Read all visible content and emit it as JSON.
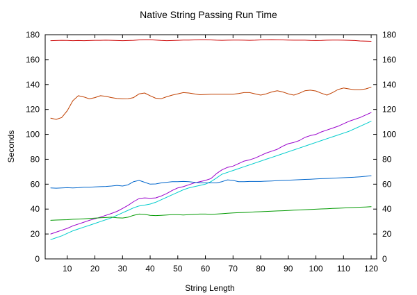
{
  "chart_data": {
    "type": "line",
    "title": "Native String Passing Run Time",
    "xlabel": "String Length",
    "ylabel": "Seconds",
    "xlim": [
      2,
      122
    ],
    "ylim": [
      0,
      180
    ],
    "xticks": [
      10,
      20,
      30,
      40,
      50,
      60,
      70,
      80,
      90,
      100,
      110,
      120
    ],
    "yticks": [
      0,
      20,
      40,
      60,
      80,
      100,
      120,
      140,
      160,
      180
    ],
    "y2ticks": [
      0,
      20,
      40,
      60,
      80,
      100,
      120,
      140,
      160,
      180
    ],
    "grid": false,
    "x": [
      4,
      6,
      8,
      10,
      12,
      14,
      16,
      18,
      20,
      22,
      24,
      26,
      28,
      30,
      32,
      34,
      36,
      38,
      40,
      42,
      44,
      46,
      48,
      50,
      52,
      54,
      56,
      58,
      60,
      62,
      64,
      66,
      68,
      70,
      72,
      74,
      76,
      78,
      80,
      82,
      84,
      86,
      88,
      90,
      92,
      94,
      96,
      98,
      100,
      102,
      104,
      106,
      108,
      110,
      112,
      114,
      116,
      118,
      120
    ],
    "series": [
      {
        "color": "#cc0000",
        "values": [
          175.2,
          175.3,
          175.5,
          175.4,
          175.2,
          175.3,
          175.2,
          175.3,
          175.5,
          175.5,
          175.6,
          175.5,
          175.3,
          175.2,
          175.3,
          175.5,
          175.8,
          176.0,
          176.0,
          175.7,
          175.4,
          175.2,
          175.3,
          175.5,
          175.7,
          175.7,
          175.8,
          176.0,
          176.0,
          175.8,
          175.6,
          175.5,
          175.6,
          175.7,
          175.7,
          175.6,
          175.5,
          175.6,
          175.8,
          175.9,
          176.0,
          175.9,
          175.8,
          175.7,
          175.6,
          175.6,
          175.6,
          175.4,
          175.3,
          175.4,
          175.6,
          175.7,
          175.7,
          175.6,
          175.5,
          175.3,
          175.0,
          174.8,
          174.7
        ]
      },
      {
        "color": "#c04000",
        "values": [
          113.0,
          112.0,
          113.5,
          119.0,
          127.0,
          131.0,
          130.0,
          128.5,
          129.5,
          131.0,
          130.5,
          129.5,
          128.8,
          128.5,
          128.6,
          129.5,
          132.5,
          133.2,
          131.0,
          129.0,
          128.6,
          130.2,
          131.5,
          132.5,
          133.5,
          133.2,
          132.5,
          131.8,
          132.0,
          132.2,
          132.2,
          132.2,
          132.2,
          132.2,
          132.8,
          133.5,
          133.5,
          132.5,
          131.5,
          132.5,
          134.0,
          135.0,
          134.0,
          132.5,
          131.5,
          133.0,
          135.0,
          135.5,
          134.8,
          133.0,
          131.5,
          133.5,
          136.0,
          137.2,
          136.5,
          135.8,
          135.8,
          136.5,
          137.8
        ]
      },
      {
        "color": "#9900cc",
        "values": [
          20.0,
          21.5,
          23.0,
          24.5,
          26.5,
          28.0,
          29.5,
          31.0,
          32.2,
          33.5,
          35.0,
          36.5,
          38.2,
          40.5,
          43.0,
          46.0,
          48.5,
          49.0,
          48.7,
          49.0,
          50.5,
          52.5,
          55.0,
          57.0,
          58.0,
          59.5,
          61.0,
          62.0,
          63.0,
          64.5,
          68.5,
          71.5,
          73.5,
          74.5,
          76.5,
          78.5,
          79.5,
          81.0,
          83.0,
          85.0,
          86.5,
          88.0,
          90.5,
          92.5,
          93.5,
          95.0,
          97.5,
          99.0,
          100.0,
          102.0,
          103.5,
          105.0,
          106.5,
          108.5,
          110.5,
          112.0,
          113.5,
          115.5,
          117.5
        ]
      },
      {
        "color": "#00cccc",
        "values": [
          15.5,
          17.0,
          18.5,
          20.5,
          22.5,
          24.0,
          25.5,
          27.0,
          28.5,
          30.0,
          31.5,
          33.0,
          35.0,
          37.0,
          39.0,
          41.0,
          42.5,
          43.2,
          44.0,
          45.5,
          47.5,
          49.5,
          51.5,
          53.5,
          55.5,
          57.0,
          58.0,
          59.0,
          60.0,
          62.0,
          65.0,
          68.0,
          69.5,
          71.0,
          72.5,
          74.0,
          75.5,
          77.0,
          78.5,
          80.0,
          81.5,
          83.0,
          84.5,
          86.0,
          87.5,
          89.0,
          90.5,
          92.0,
          93.5,
          95.0,
          96.5,
          98.0,
          99.5,
          101.0,
          102.5,
          104.5,
          106.5,
          108.5,
          110.5
        ]
      },
      {
        "color": "#0066cc",
        "values": [
          57.0,
          56.8,
          57.0,
          57.2,
          57.0,
          57.2,
          57.5,
          57.5,
          57.8,
          58.0,
          58.2,
          58.5,
          59.0,
          58.5,
          59.5,
          62.0,
          63.0,
          61.5,
          60.0,
          60.2,
          61.0,
          61.5,
          62.0,
          62.0,
          62.2,
          62.0,
          61.5,
          61.0,
          61.0,
          61.0,
          61.0,
          62.0,
          63.5,
          63.0,
          62.0,
          62.0,
          62.2,
          62.2,
          62.2,
          62.4,
          62.6,
          62.8,
          63.0,
          63.2,
          63.4,
          63.6,
          63.8,
          64.0,
          64.2,
          64.4,
          64.6,
          64.8,
          65.0,
          65.2,
          65.4,
          65.6,
          65.9,
          66.3,
          66.8
        ]
      },
      {
        "color": "#009900",
        "values": [
          31.0,
          31.2,
          31.3,
          31.5,
          31.8,
          32.0,
          32.2,
          32.5,
          32.7,
          33.0,
          33.2,
          33.5,
          33.0,
          32.8,
          33.5,
          35.0,
          36.0,
          35.8,
          35.0,
          34.8,
          35.0,
          35.2,
          35.5,
          35.5,
          35.3,
          35.5,
          35.8,
          36.0,
          36.0,
          35.8,
          36.0,
          36.3,
          36.6,
          36.9,
          37.1,
          37.3,
          37.5,
          37.7,
          37.9,
          38.1,
          38.3,
          38.5,
          38.7,
          38.9,
          39.1,
          39.3,
          39.5,
          39.7,
          39.9,
          40.1,
          40.3,
          40.5,
          40.7,
          40.9,
          41.1,
          41.3,
          41.5,
          41.7,
          41.9
        ]
      }
    ]
  }
}
